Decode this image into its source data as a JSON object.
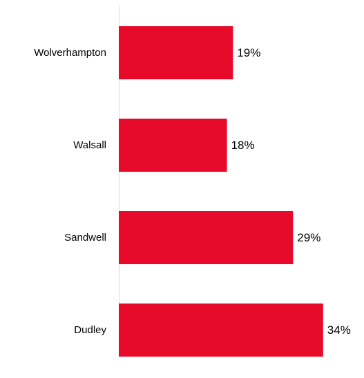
{
  "chart_data": {
    "type": "bar",
    "orientation": "horizontal",
    "categories": [
      "Wolverhampton",
      "Walsall",
      "Sandwell",
      "Dudley"
    ],
    "values": [
      19,
      18,
      29,
      34
    ],
    "value_labels": [
      "19%",
      "18%",
      "29%",
      "34%"
    ],
    "bar_color": "#e80a2a",
    "axis_color": "#d9d9d9",
    "grid": false,
    "legend": "none"
  }
}
